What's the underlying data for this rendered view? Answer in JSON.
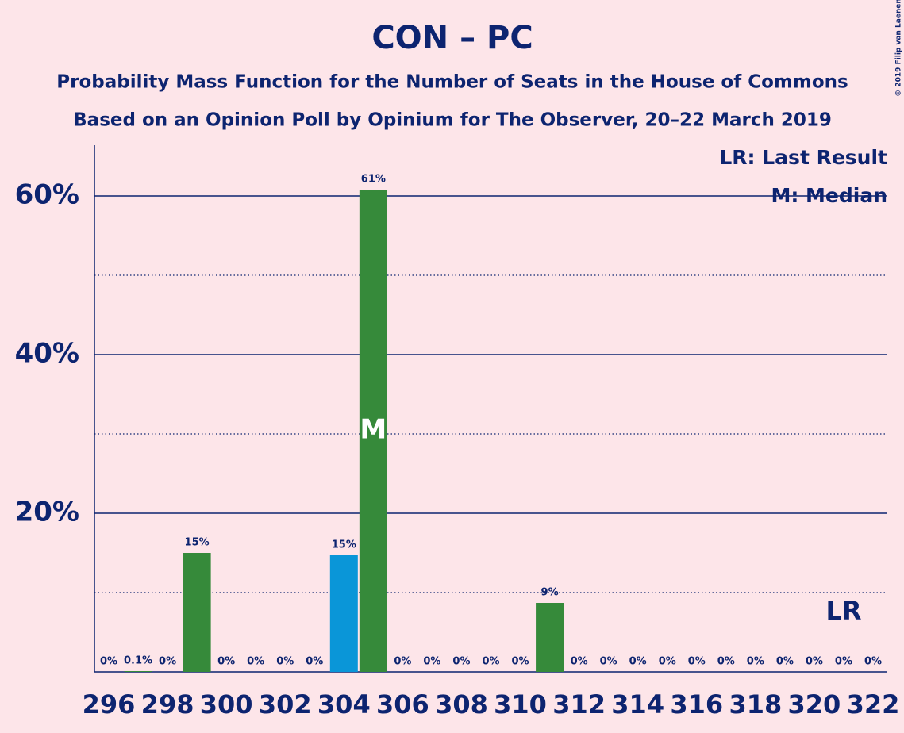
{
  "chart_data": {
    "type": "bar",
    "title": "CON – PC",
    "subtitle": "Probability Mass Function for the Number of Seats in the House of Commons",
    "subtitle2": "Based on an Opinion Poll by Opinium for The Observer, 20–22 March 2019",
    "copyright": "© 2019 Filip van Laenen",
    "legend": [
      "LR: Last Result",
      "M: Median"
    ],
    "median_label": "M",
    "last_result_label": "LR",
    "median": 305,
    "last_result": 321,
    "categories": [
      296,
      null,
      298,
      null,
      300,
      null,
      302,
      null,
      304,
      null,
      306,
      null,
      308,
      null,
      310,
      null,
      312,
      null,
      314,
      null,
      316,
      null,
      318,
      null,
      320,
      null,
      322
    ],
    "seats": [
      296,
      297,
      298,
      299,
      300,
      301,
      302,
      303,
      304,
      305,
      306,
      307,
      308,
      309,
      310,
      311,
      312,
      313,
      314,
      315,
      316,
      317,
      318,
      319,
      320,
      321,
      322
    ],
    "values": [
      0,
      0.1,
      0,
      15,
      0,
      0,
      0,
      0,
      14.7,
      60.8,
      0,
      0,
      0,
      0,
      0,
      8.7,
      0,
      0,
      0,
      0,
      0,
      0,
      0,
      0,
      0,
      0,
      0
    ],
    "value_labels": [
      "0%",
      "0.1%",
      "0%",
      "15%",
      "0%",
      "0%",
      "0%",
      "0%",
      "15%",
      "61%",
      "0%",
      "0%",
      "0%",
      "0%",
      "0%",
      "9%",
      "0%",
      "0%",
      "0%",
      "0%",
      "0%",
      "0%",
      "0%",
      "0%",
      "0%",
      "0%",
      "0%"
    ],
    "colors": [
      "#368a3a",
      "#368a3a",
      "#368a3a",
      "#368a3a",
      "#368a3a",
      "#368a3a",
      "#368a3a",
      "#368a3a",
      "#0a96d8",
      "#368a3a",
      "#368a3a",
      "#368a3a",
      "#368a3a",
      "#368a3a",
      "#368a3a",
      "#368a3a",
      "#368a3a",
      "#368a3a",
      "#368a3a",
      "#368a3a",
      "#368a3a",
      "#368a3a",
      "#368a3a",
      "#368a3a",
      "#368a3a",
      "#368a3a",
      "#368a3a"
    ],
    "ylim": [
      0,
      66.4
    ],
    "yticks": [
      {
        "value": 20,
        "label": "20%"
      },
      {
        "value": 40,
        "label": "40%"
      },
      {
        "value": 60,
        "label": "60%"
      }
    ],
    "minor_yticks": [
      10,
      30,
      50
    ],
    "grid": true
  }
}
